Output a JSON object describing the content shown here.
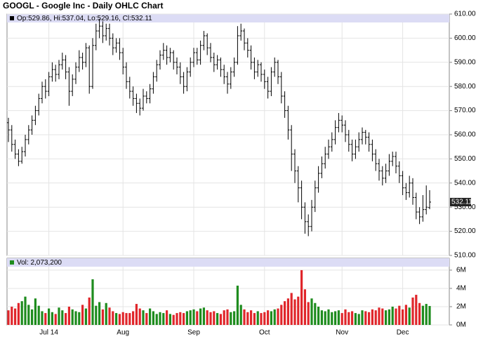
{
  "chart_data": {
    "type": "ohlc",
    "title": "GOOGL - Google Inc - Daily OHLC Chart",
    "info_label": "Op:529.86, Hi:537.04, Lo:529.16, Cl:532.11",
    "last_price_label": "532.11",
    "volume_label": "Vol: 2,073,200",
    "categories": [
      null,
      null,
      null,
      null,
      null,
      null,
      null,
      null,
      null,
      null,
      null,
      null,
      "Jul 14",
      null,
      null,
      null,
      null,
      null,
      null,
      null,
      null,
      null,
      null,
      null,
      null,
      null,
      null,
      null,
      null,
      null,
      null,
      null,
      null,
      null,
      "Aug",
      null,
      null,
      null,
      null,
      null,
      null,
      null,
      null,
      null,
      null,
      null,
      null,
      null,
      null,
      null,
      null,
      null,
      null,
      null,
      null,
      "Sep",
      null,
      null,
      null,
      null,
      null,
      null,
      null,
      null,
      null,
      null,
      null,
      null,
      null,
      null,
      null,
      null,
      null,
      null,
      null,
      null,
      "Oct",
      null,
      null,
      null,
      null,
      null,
      null,
      null,
      null,
      null,
      null,
      null,
      null,
      null,
      null,
      null,
      null,
      null,
      null,
      null,
      null,
      null,
      null,
      "Nov",
      null,
      null,
      null,
      null,
      null,
      null,
      null,
      null,
      null,
      null,
      null,
      null,
      null,
      null,
      null,
      null,
      null,
      "Dec",
      null,
      null,
      null,
      null,
      null,
      null,
      null,
      null
    ],
    "open": [
      565,
      562,
      556,
      552,
      549,
      553,
      558,
      562,
      566,
      570,
      575,
      580,
      578,
      584,
      587,
      585,
      589,
      591,
      586,
      578,
      583,
      588,
      592,
      590,
      596,
      580,
      597,
      603,
      605,
      601,
      604,
      600,
      596,
      598,
      594,
      588,
      582,
      578,
      575,
      573,
      571,
      576,
      575,
      579,
      584,
      589,
      593,
      595,
      592,
      594,
      590,
      588,
      584,
      580,
      586,
      590,
      594,
      591,
      597,
      601,
      596,
      592,
      589,
      591,
      587,
      584,
      581,
      586,
      590,
      601,
      603,
      598,
      595,
      590,
      586,
      589,
      585,
      582,
      578,
      586,
      590,
      584,
      576,
      570,
      562,
      552,
      545,
      538,
      530,
      524,
      522,
      530,
      538,
      544,
      548,
      552,
      555,
      558,
      563,
      566,
      564,
      560,
      556,
      552,
      555,
      558,
      561,
      559,
      556,
      552,
      548,
      545,
      542,
      545,
      549,
      551,
      547,
      543,
      538,
      536,
      540,
      534,
      528,
      526,
      529,
      529.86
    ],
    "high": [
      567,
      564,
      558,
      554,
      555,
      560,
      564,
      568,
      572,
      577,
      582,
      583,
      586,
      590,
      589,
      591,
      594,
      593,
      588,
      585,
      590,
      595,
      594,
      598,
      597,
      600,
      606,
      608,
      607,
      606,
      606,
      602,
      600,
      600,
      596,
      590,
      584,
      580,
      577,
      575,
      579,
      578,
      581,
      586,
      591,
      595,
      598,
      597,
      596,
      595,
      592,
      590,
      586,
      588,
      592,
      596,
      596,
      599,
      603,
      602,
      598,
      594,
      593,
      592,
      589,
      586,
      588,
      592,
      605,
      606,
      604,
      600,
      597,
      592,
      591,
      590,
      587,
      584,
      588,
      592,
      591,
      586,
      578,
      572,
      564,
      554,
      547,
      541,
      532,
      527,
      533,
      541,
      547,
      551,
      555,
      558,
      561,
      566,
      569,
      568,
      566,
      562,
      558,
      558,
      561,
      563,
      562,
      561,
      558,
      554,
      550,
      547,
      548,
      552,
      553,
      553,
      549,
      545,
      540,
      543,
      542,
      536,
      530,
      535,
      539,
      537.04
    ],
    "low": [
      557,
      553,
      550,
      547,
      548,
      551,
      556,
      560,
      564,
      568,
      573,
      575,
      576,
      582,
      582,
      583,
      587,
      583,
      572,
      576,
      581,
      586,
      587,
      588,
      577,
      579,
      595,
      600,
      598,
      599,
      597,
      593,
      594,
      591,
      585,
      579,
      575,
      572,
      569,
      568,
      570,
      573,
      573,
      577,
      582,
      587,
      591,
      589,
      590,
      587,
      585,
      581,
      577,
      578,
      584,
      588,
      589,
      589,
      595,
      593,
      590,
      586,
      587,
      584,
      581,
      577,
      579,
      584,
      589,
      599,
      595,
      592,
      587,
      583,
      584,
      582,
      579,
      575,
      576,
      584,
      581,
      573,
      567,
      558,
      545,
      540,
      532,
      525,
      519,
      518,
      520,
      528,
      536,
      542,
      546,
      550,
      553,
      556,
      561,
      561,
      557,
      553,
      549,
      550,
      553,
      556,
      556,
      553,
      549,
      545,
      541,
      539,
      540,
      543,
      547,
      544,
      540,
      535,
      533,
      534,
      531,
      525,
      523,
      524,
      527,
      529.16
    ],
    "close": [
      562,
      556,
      552,
      549,
      553,
      558,
      562,
      566,
      570,
      575,
      580,
      578,
      584,
      587,
      585,
      589,
      591,
      586,
      578,
      583,
      588,
      592,
      590,
      596,
      580,
      597,
      603,
      605,
      601,
      604,
      600,
      596,
      598,
      594,
      588,
      582,
      578,
      575,
      573,
      571,
      576,
      575,
      579,
      584,
      589,
      593,
      595,
      592,
      594,
      590,
      588,
      584,
      580,
      586,
      590,
      594,
      591,
      597,
      601,
      596,
      592,
      589,
      591,
      587,
      584,
      581,
      586,
      590,
      601,
      603,
      598,
      595,
      590,
      586,
      589,
      585,
      582,
      578,
      586,
      590,
      584,
      576,
      570,
      562,
      552,
      545,
      538,
      530,
      524,
      522,
      530,
      538,
      544,
      548,
      552,
      555,
      558,
      563,
      566,
      564,
      560,
      556,
      552,
      555,
      558,
      561,
      559,
      556,
      552,
      548,
      545,
      542,
      545,
      549,
      551,
      547,
      543,
      538,
      536,
      540,
      534,
      528,
      526,
      529,
      530,
      532.11
    ],
    "volume": [
      1.6,
      2.0,
      1.8,
      2.4,
      2.6,
      3.1,
      2.2,
      1.7,
      2.9,
      2.1,
      1.5,
      1.3,
      1.8,
      1.4,
      1.2,
      1.9,
      1.6,
      1.3,
      2.0,
      1.7,
      1.5,
      1.4,
      2.2,
      1.8,
      3.0,
      5.0,
      2.1,
      2.5,
      1.7,
      2.4,
      1.9,
      1.5,
      1.3,
      1.2,
      1.4,
      1.3,
      1.3,
      1.5,
      2.3,
      1.8,
      1.6,
      1.3,
      1.8,
      1.5,
      1.2,
      1.4,
      1.3,
      1.6,
      1.2,
      1.1,
      1.3,
      1.4,
      1.3,
      1.5,
      1.6,
      1.7,
      1.5,
      1.8,
      1.9,
      1.6,
      1.4,
      1.5,
      1.3,
      1.2,
      1.6,
      1.7,
      1.4,
      1.5,
      4.3,
      2.2,
      1.7,
      1.4,
      1.6,
      1.3,
      1.5,
      1.3,
      1.4,
      1.6,
      1.5,
      1.7,
      1.8,
      2.2,
      2.6,
      2.9,
      3.5,
      2.8,
      3.1,
      6.0,
      3.9,
      2.5,
      2.9,
      2.4,
      2.0,
      1.6,
      1.5,
      1.7,
      1.4,
      1.5,
      1.6,
      1.3,
      1.7,
      1.4,
      1.5,
      1.3,
      1.2,
      1.6,
      1.5,
      1.4,
      1.7,
      1.6,
      1.9,
      1.8,
      1.6,
      1.7,
      2.0,
      1.8,
      2.1,
      1.7,
      2.2,
      1.9,
      3.0,
      3.3,
      2.4,
      2.1,
      2.3,
      2.0732
    ],
    "ylim": [
      510,
      610
    ],
    "yticks": [
      {
        "value": 510,
        "label": "510.00"
      },
      {
        "value": 520,
        "label": "520.00"
      },
      {
        "value": 530,
        "label": "530.00"
      },
      {
        "value": 540,
        "label": "540.00"
      },
      {
        "value": 550,
        "label": "550.00"
      },
      {
        "value": 560,
        "label": "560.00"
      },
      {
        "value": 570,
        "label": "570.00"
      },
      {
        "value": 580,
        "label": "580.00"
      },
      {
        "value": 590,
        "label": "590.00"
      },
      {
        "value": 600,
        "label": "600.00"
      },
      {
        "value": 610,
        "label": "610.00"
      }
    ],
    "volume_ylim": [
      0,
      7.3
    ],
    "volume_yticks": [
      {
        "value": 0,
        "label": "0M"
      },
      {
        "value": 2,
        "label": "2M"
      },
      {
        "value": 4,
        "label": "4M"
      },
      {
        "value": 6,
        "label": "6M"
      }
    ],
    "bar_color": "#000000",
    "up_color": "#1e8c1e",
    "down_color": "#e0262b",
    "grid": true
  }
}
